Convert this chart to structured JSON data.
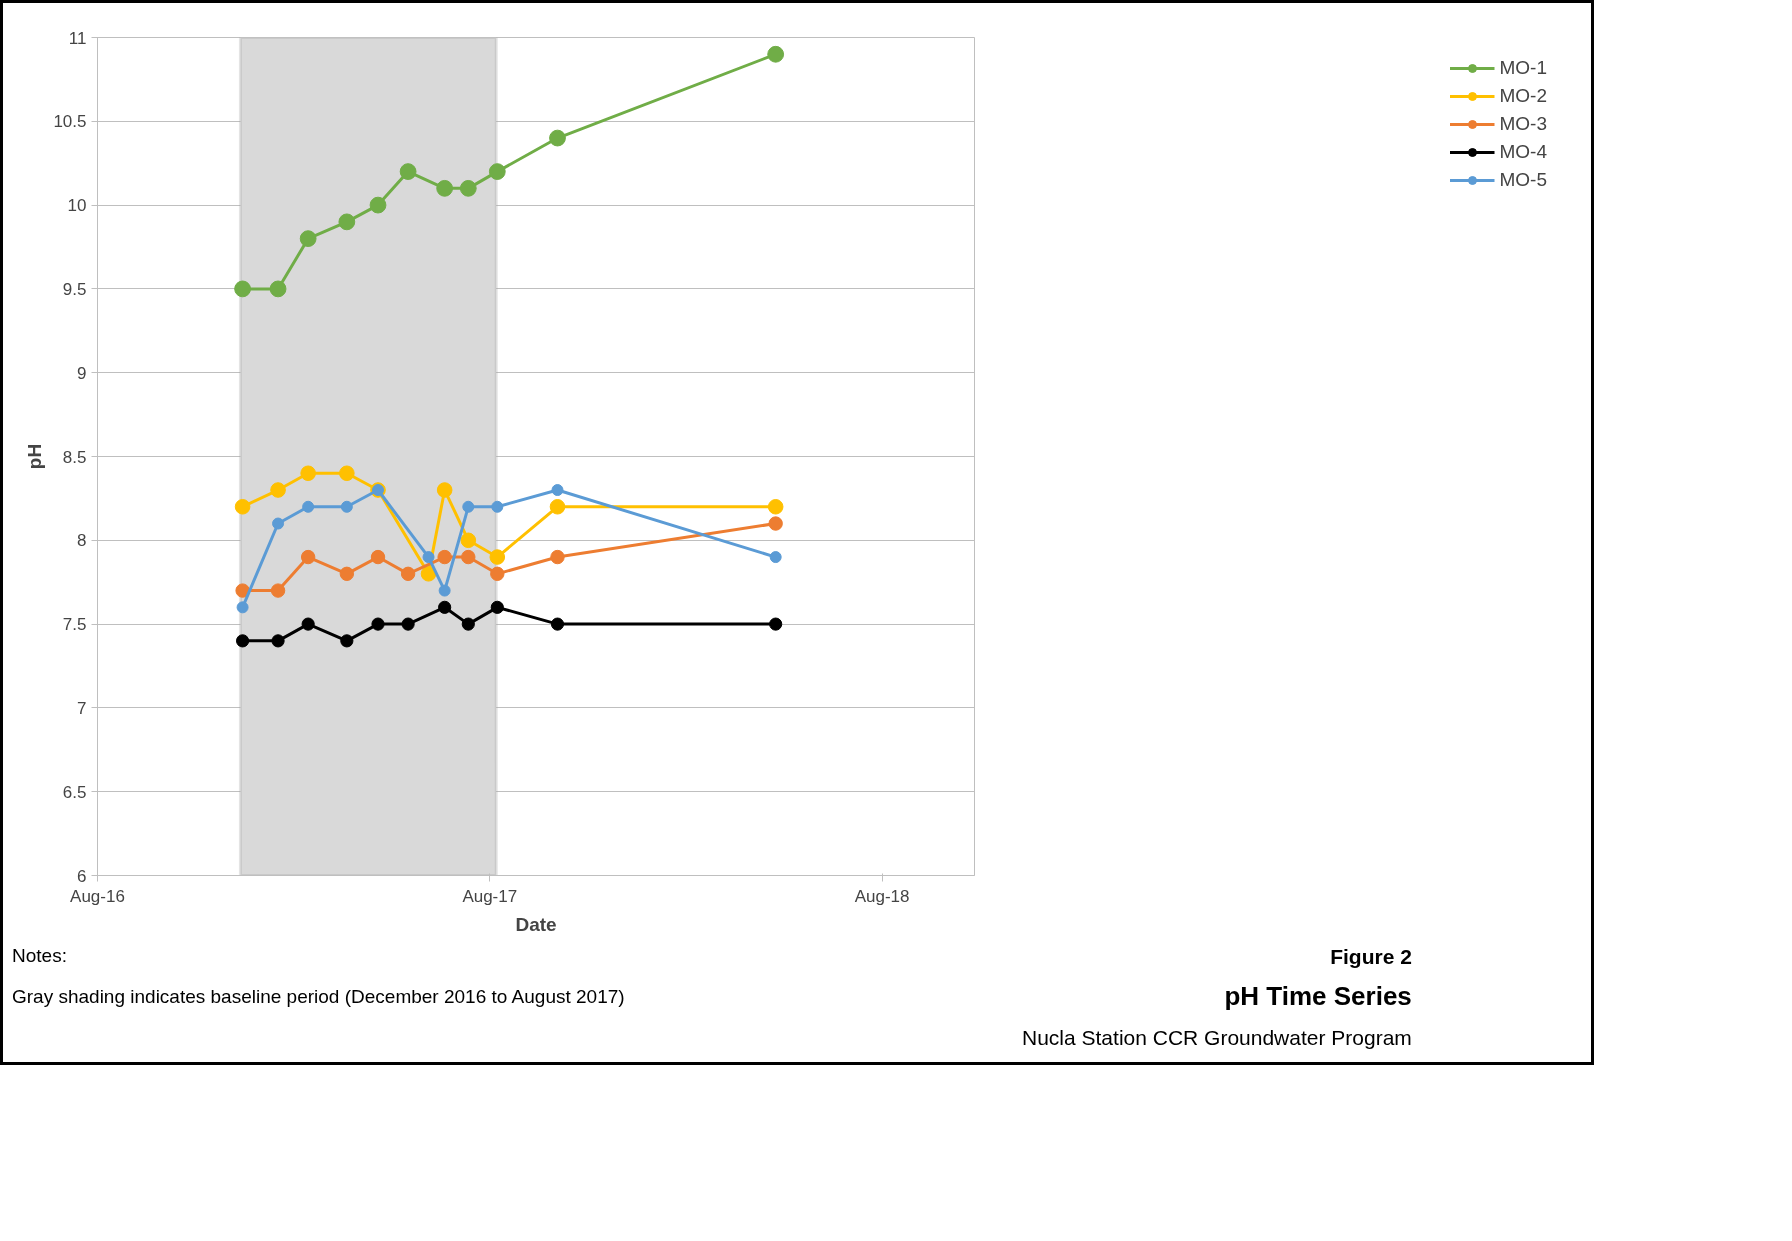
{
  "chart_data": {
    "type": "line",
    "title": "pH Time Series",
    "subtitle": "Nucla Station CCR Groundwater Program",
    "xlabel": "Date",
    "ylabel": "pH",
    "annotations": [
      "Figure 2",
      "Notes:",
      "Gray shading indicates baseline period (December 2016 to August 2017)"
    ],
    "xlim": [
      "2016-08-01",
      "2018-10-26"
    ],
    "xticks": [
      {
        "value": "2016-08-01",
        "label": "Aug-16"
      },
      {
        "value": "2017-08-01",
        "label": "Aug-17"
      },
      {
        "value": "2018-08-01",
        "label": "Aug-18"
      }
    ],
    "ylim": [
      6,
      11
    ],
    "yticks": [
      6,
      6.5,
      7,
      7.5,
      8,
      8.5,
      9,
      9.5,
      10,
      10.5,
      11
    ],
    "grid": "y",
    "legend": "right",
    "marker": "circle",
    "line_style": "solid",
    "bands": [
      {
        "axis": "x",
        "from": "2016-12-12",
        "to": "2017-08-07",
        "color": "#d9d9d9"
      }
    ],
    "series": [
      {
        "name": "MO-1",
        "color": "#70ad47",
        "x": [
          "2016-12-14",
          "2017-01-16",
          "2017-02-13",
          "2017-03-21",
          "2017-04-19",
          "2017-05-17",
          "2017-06-20",
          "2017-07-12",
          "2017-08-08",
          "2017-10-03",
          "2018-04-24"
        ],
        "values": [
          9.5,
          9.5,
          9.8,
          9.9,
          10.0,
          10.2,
          10.1,
          10.1,
          10.2,
          10.4,
          10.9
        ]
      },
      {
        "name": "MO-2",
        "color": "#ffc000",
        "x": [
          "2016-12-14",
          "2017-01-16",
          "2017-02-13",
          "2017-03-21",
          "2017-04-19",
          "2017-06-05",
          "2017-06-20",
          "2017-07-12",
          "2017-08-08",
          "2017-10-03",
          "2018-04-24"
        ],
        "values": [
          8.2,
          8.3,
          8.4,
          8.4,
          8.3,
          7.8,
          8.3,
          8.0,
          7.9,
          8.2,
          8.2
        ]
      },
      {
        "name": "MO-3",
        "color": "#ed7d31",
        "x": [
          "2016-12-14",
          "2017-01-16",
          "2017-02-13",
          "2017-03-21",
          "2017-04-19",
          "2017-05-17",
          "2017-06-20",
          "2017-07-12",
          "2017-08-08",
          "2017-10-03",
          "2018-04-24"
        ],
        "values": [
          7.7,
          7.7,
          7.9,
          7.8,
          7.9,
          7.8,
          7.9,
          7.9,
          7.8,
          7.9,
          8.1
        ]
      },
      {
        "name": "MO-4",
        "color": "#000000",
        "x": [
          "2016-12-14",
          "2017-01-16",
          "2017-02-13",
          "2017-03-21",
          "2017-04-19",
          "2017-05-17",
          "2017-06-20",
          "2017-07-12",
          "2017-08-08",
          "2017-10-03",
          "2018-04-24"
        ],
        "values": [
          7.4,
          7.4,
          7.5,
          7.4,
          7.5,
          7.5,
          7.6,
          7.5,
          7.6,
          7.5,
          7.5
        ]
      },
      {
        "name": "MO-5",
        "color": "#5b9bd5",
        "x": [
          "2016-12-14",
          "2017-01-16",
          "2017-02-13",
          "2017-03-21",
          "2017-04-19",
          "2017-06-05",
          "2017-06-20",
          "2017-07-12",
          "2017-08-08",
          "2017-10-03",
          "2018-04-24"
        ],
        "values": [
          7.6,
          8.1,
          8.2,
          8.2,
          8.3,
          7.9,
          7.7,
          8.2,
          8.2,
          8.3,
          7.9
        ]
      }
    ]
  }
}
